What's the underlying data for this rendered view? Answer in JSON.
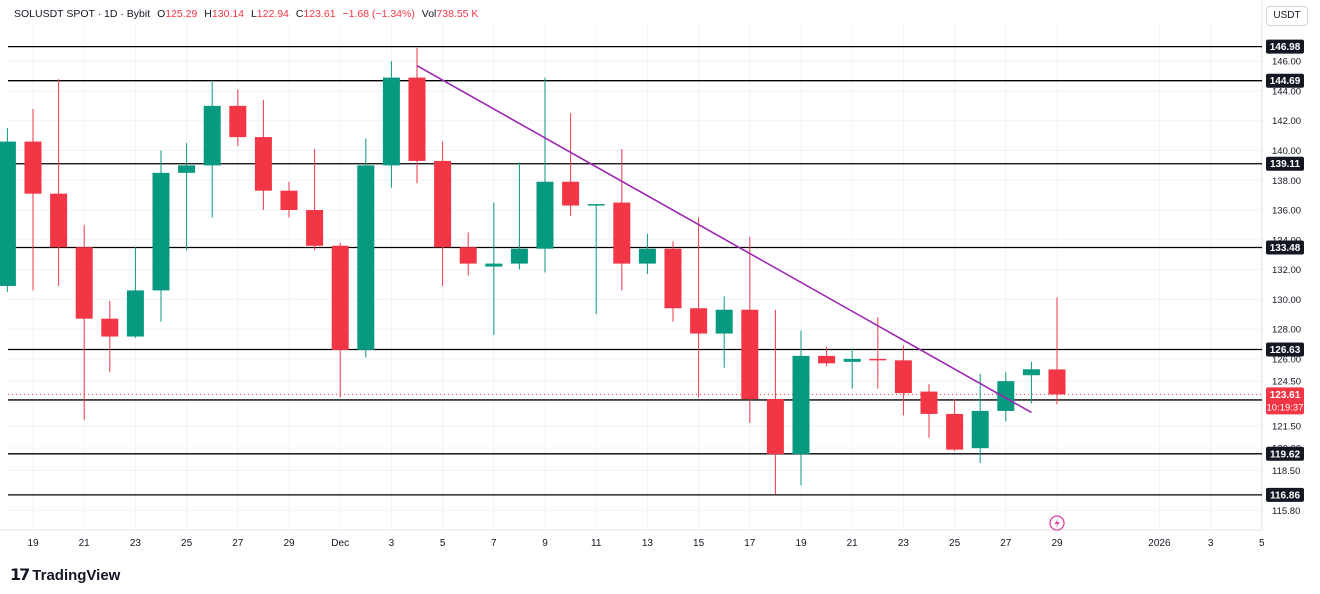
{
  "header": {
    "symbol": "SOLUSDT SPOT · 1D · Bybit",
    "o_label": "O",
    "o_value": "125.29",
    "h_label": "H",
    "h_value": "130.14",
    "l_label": "L",
    "l_value": "122.94",
    "c_label": "C",
    "c_value": "123.61",
    "change": "−1.68 (−1.34%)",
    "vol_label": "Vol",
    "vol_value": "738.55 K"
  },
  "currency_button": "USDT",
  "brand": "TradingView",
  "colors": {
    "up": "#089981",
    "down": "#f23645",
    "trendline": "#9c27b0",
    "level": "#000000",
    "grid": "#f0f3fa"
  },
  "chart_data": {
    "type": "candlestick",
    "y_range": [
      114.5,
      148.5
    ],
    "price_ticks": [
      "146.00",
      "144.00",
      "142.00",
      "140.00",
      "138.00",
      "136.00",
      "134.00",
      "132.00",
      "130.00",
      "128.00",
      "126.00",
      "124.50",
      "121.50",
      "120.00",
      "118.50",
      "115.80"
    ],
    "x_ticks": [
      "19",
      "21",
      "23",
      "25",
      "27",
      "29",
      "Dec",
      "3",
      "5",
      "7",
      "9",
      "11",
      "13",
      "15",
      "17",
      "19",
      "21",
      "23",
      "25",
      "27",
      "29",
      "2026",
      "3",
      "5"
    ],
    "horizontal_levels": [
      "146.98",
      "144.69",
      "139.11",
      "133.48",
      "126.63",
      "123.24",
      "119.62",
      "116.86"
    ],
    "last_price": "123.61",
    "countdown": "10:19:37",
    "trendline": {
      "from": {
        "day": 15,
        "price": 145.7
      },
      "to": {
        "day": 39,
        "price": 122.4
      }
    },
    "candles": [
      {
        "day": -1,
        "date": "Nov 18",
        "o": 130.9,
        "h": 141.5,
        "l": 130.5,
        "c": 140.6
      },
      {
        "day": 0,
        "date": "Nov 19",
        "o": 140.6,
        "h": 142.8,
        "l": 130.6,
        "c": 137.1
      },
      {
        "day": 1,
        "date": "Nov 20",
        "o": 137.1,
        "h": 144.8,
        "l": 130.9,
        "c": 133.5
      },
      {
        "day": 2,
        "date": "Nov 21",
        "o": 133.5,
        "h": 135.0,
        "l": 121.9,
        "c": 128.7
      },
      {
        "day": 3,
        "date": "Nov 22",
        "o": 128.7,
        "h": 129.9,
        "l": 125.1,
        "c": 127.5
      },
      {
        "day": 4,
        "date": "Nov 23",
        "o": 127.5,
        "h": 133.5,
        "l": 127.4,
        "c": 130.6
      },
      {
        "day": 5,
        "date": "Nov 24",
        "o": 130.6,
        "h": 140.0,
        "l": 128.5,
        "c": 138.5
      },
      {
        "day": 6,
        "date": "Nov 25",
        "o": 138.5,
        "h": 140.5,
        "l": 133.3,
        "c": 139.0
      },
      {
        "day": 7,
        "date": "Nov 26",
        "o": 139.0,
        "h": 144.6,
        "l": 135.5,
        "c": 143.0
      },
      {
        "day": 8,
        "date": "Nov 27",
        "o": 143.0,
        "h": 144.1,
        "l": 140.3,
        "c": 140.9
      },
      {
        "day": 9,
        "date": "Nov 28",
        "o": 140.9,
        "h": 143.4,
        "l": 136.0,
        "c": 137.3
      },
      {
        "day": 10,
        "date": "Nov 29",
        "o": 137.3,
        "h": 137.9,
        "l": 135.5,
        "c": 136.0
      },
      {
        "day": 11,
        "date": "Nov 30",
        "o": 136.0,
        "h": 140.1,
        "l": 133.3,
        "c": 133.6
      },
      {
        "day": 12,
        "date": "Dec 1",
        "o": 133.6,
        "h": 133.8,
        "l": 123.4,
        "c": 126.6
      },
      {
        "day": 13,
        "date": "Dec 2",
        "o": 126.6,
        "h": 140.8,
        "l": 126.1,
        "c": 139.0
      },
      {
        "day": 14,
        "date": "Dec 3",
        "o": 139.0,
        "h": 146.0,
        "l": 137.5,
        "c": 144.9
      },
      {
        "day": 15,
        "date": "Dec 4",
        "o": 144.9,
        "h": 146.9,
        "l": 137.8,
        "c": 139.3
      },
      {
        "day": 16,
        "date": "Dec 5",
        "o": 139.3,
        "h": 140.6,
        "l": 130.9,
        "c": 133.5
      },
      {
        "day": 17,
        "date": "Dec 6",
        "o": 133.5,
        "h": 134.5,
        "l": 131.6,
        "c": 132.4
      },
      {
        "day": 18,
        "date": "Dec 7",
        "o": 132.2,
        "h": 136.5,
        "l": 127.6,
        "c": 132.4
      },
      {
        "day": 19,
        "date": "Dec 8",
        "o": 132.4,
        "h": 139.2,
        "l": 132.0,
        "c": 133.4
      },
      {
        "day": 20,
        "date": "Dec 9",
        "o": 133.4,
        "h": 144.9,
        "l": 131.8,
        "c": 137.9
      },
      {
        "day": 21,
        "date": "Dec 10",
        "o": 137.9,
        "h": 142.5,
        "l": 135.6,
        "c": 136.3
      },
      {
        "day": 22,
        "date": "Dec 11",
        "o": 136.3,
        "h": 136.4,
        "l": 129.0,
        "c": 136.4
      },
      {
        "day": 23,
        "date": "Dec 12",
        "o": 136.5,
        "h": 140.1,
        "l": 130.6,
        "c": 132.4
      },
      {
        "day": 24,
        "date": "Dec 13",
        "o": 132.4,
        "h": 134.4,
        "l": 131.7,
        "c": 133.4
      },
      {
        "day": 25,
        "date": "Dec 14",
        "o": 133.4,
        "h": 133.9,
        "l": 128.5,
        "c": 129.4
      },
      {
        "day": 26,
        "date": "Dec 15",
        "o": 129.4,
        "h": 135.5,
        "l": 123.4,
        "c": 127.7
      },
      {
        "day": 27,
        "date": "Dec 16",
        "o": 127.7,
        "h": 130.2,
        "l": 125.4,
        "c": 129.3
      },
      {
        "day": 28,
        "date": "Dec 17",
        "o": 129.3,
        "h": 134.2,
        "l": 121.7,
        "c": 123.3
      },
      {
        "day": 29,
        "date": "Dec 18",
        "o": 123.3,
        "h": 129.3,
        "l": 116.9,
        "c": 119.6
      },
      {
        "day": 30,
        "date": "Dec 19",
        "o": 119.6,
        "h": 127.9,
        "l": 117.5,
        "c": 126.2
      },
      {
        "day": 31,
        "date": "Dec 20",
        "o": 126.2,
        "h": 126.8,
        "l": 125.5,
        "c": 125.7
      },
      {
        "day": 32,
        "date": "Dec 21",
        "o": 125.8,
        "h": 126.7,
        "l": 124.0,
        "c": 126.0
      },
      {
        "day": 33,
        "date": "Dec 22",
        "o": 126.0,
        "h": 128.8,
        "l": 124.0,
        "c": 125.9
      },
      {
        "day": 34,
        "date": "Dec 23",
        "o": 125.9,
        "h": 126.9,
        "l": 122.2,
        "c": 123.7
      },
      {
        "day": 35,
        "date": "Dec 24",
        "o": 123.8,
        "h": 124.3,
        "l": 120.7,
        "c": 122.3
      },
      {
        "day": 36,
        "date": "Dec 25",
        "o": 122.3,
        "h": 123.3,
        "l": 119.8,
        "c": 119.9
      },
      {
        "day": 37,
        "date": "Dec 26",
        "o": 120.0,
        "h": 125.0,
        "l": 119.0,
        "c": 122.5
      },
      {
        "day": 38,
        "date": "Dec 27",
        "o": 122.5,
        "h": 125.1,
        "l": 121.8,
        "c": 124.5
      },
      {
        "day": 39,
        "date": "Dec 28",
        "o": 124.9,
        "h": 125.8,
        "l": 123.0,
        "c": 125.3
      },
      {
        "day": 40,
        "date": "Dec 29",
        "o": 125.29,
        "h": 130.14,
        "l": 122.94,
        "c": 123.61
      }
    ]
  }
}
